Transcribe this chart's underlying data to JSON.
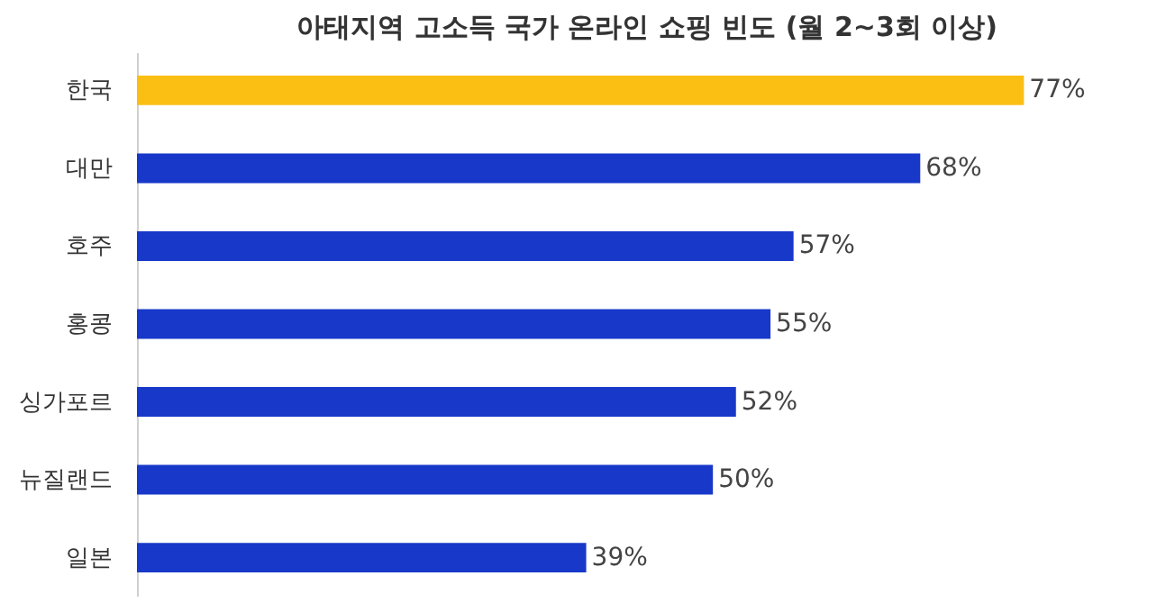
{
  "chart_data": {
    "type": "bar",
    "orientation": "horizontal",
    "title": "아태지역 고소득 국가 온라인 쇼핑 빈도 (월 2~3회 이상)",
    "categories": [
      "한국",
      "대만",
      "호주",
      "홍콩",
      "싱가포르",
      "뉴질랜드",
      "일본"
    ],
    "values": [
      77,
      68,
      57,
      55,
      52,
      50,
      39
    ],
    "colors": [
      "#fbbf14",
      "#1838c9",
      "#1838c9",
      "#1838c9",
      "#1838c9",
      "#1838c9",
      "#1838c9"
    ],
    "value_labels": [
      "77%",
      "68%",
      "57%",
      "55%",
      "52%",
      "50%",
      "39%"
    ]
  }
}
